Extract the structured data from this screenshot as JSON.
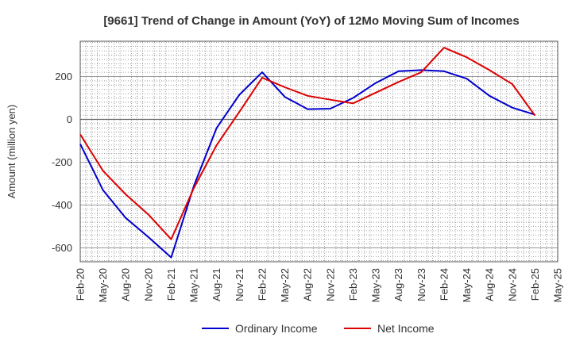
{
  "chart_data": {
    "type": "line",
    "title": "[9661]  Trend of Change in Amount (YoY) of 12Mo Moving Sum of Incomes",
    "xlabel": "",
    "ylabel": "Amount (million yen)",
    "x": [
      "Feb-20",
      "May-20",
      "Aug-20",
      "Nov-20",
      "Feb-21",
      "May-21",
      "Aug-21",
      "Nov-21",
      "Feb-22",
      "May-22",
      "Aug-22",
      "Nov-22",
      "Feb-23",
      "May-23",
      "Aug-23",
      "Nov-23",
      "Feb-24",
      "May-24",
      "Aug-24",
      "Nov-24",
      "Feb-25",
      "May-25"
    ],
    "yticks": [
      200,
      0,
      -200,
      -400,
      -600
    ],
    "ylim": [
      -665,
      365
    ],
    "grid": true,
    "legend_position": "bottom",
    "series": [
      {
        "name": "Ordinary Income",
        "color": "#0000cc",
        "values": [
          -115,
          -330,
          -460,
          -550,
          -645,
          -310,
          -40,
          115,
          220,
          105,
          48,
          50,
          100,
          170,
          225,
          230,
          225,
          190,
          110,
          55,
          22,
          null
        ]
      },
      {
        "name": "Net Income",
        "color": "#dd0000",
        "values": [
          -70,
          -240,
          -350,
          -445,
          -560,
          -320,
          -120,
          35,
          195,
          150,
          110,
          92,
          75,
          125,
          175,
          220,
          335,
          290,
          230,
          165,
          18,
          null
        ]
      }
    ]
  }
}
